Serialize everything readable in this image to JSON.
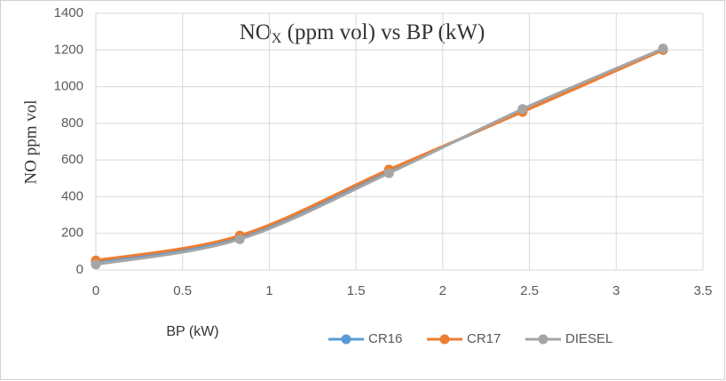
{
  "chart_data": {
    "type": "line",
    "smooth": true,
    "title": {
      "main": "NO",
      "sub": "X",
      "rest": " (ppm vol) vs BP (kW)"
    },
    "x_label": "BP (kW)",
    "y_label": "NO ppm vol",
    "x": [
      0,
      0.83,
      1.69,
      2.46,
      3.27
    ],
    "series": [
      {
        "name": "CR16",
        "color": "#5b9bd5",
        "values": [
          45,
          180,
          540,
          865,
          1200
        ]
      },
      {
        "name": "CR17",
        "color": "#ed7d31",
        "values": [
          52,
          188,
          548,
          862,
          1200
        ]
      },
      {
        "name": "DIESEL",
        "color": "#a5a5a5",
        "values": [
          30,
          168,
          528,
          878,
          1208
        ]
      }
    ],
    "xlim": [
      0,
      3.5
    ],
    "xticks": [
      0,
      0.5,
      1,
      1.5,
      2,
      2.5,
      3,
      3.5
    ],
    "ylim": [
      0,
      1400
    ],
    "yticks": [
      0,
      200,
      400,
      600,
      800,
      1000,
      1200,
      1400
    ],
    "grid": true,
    "legend": "bottom"
  }
}
